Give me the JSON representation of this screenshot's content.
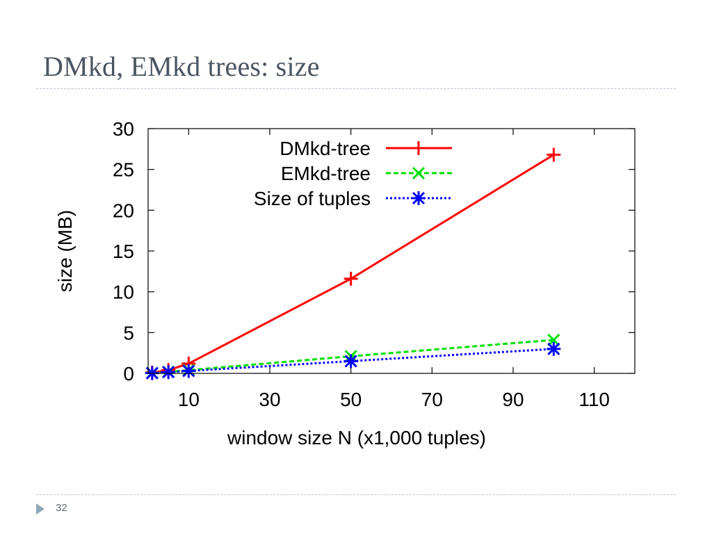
{
  "slide": {
    "title": "DMkd, EMkd trees: size",
    "page_number": "32"
  },
  "colors": {
    "dmkd": "#ff0000",
    "emkd": "#00e000",
    "tuples": "#0000ff",
    "title": "#4a5560",
    "rule": "#b6c2cc"
  },
  "chart_data": {
    "type": "line",
    "title": "",
    "xlabel": "window size N (x1,000 tuples)",
    "ylabel": "size (MB)",
    "xlim": [
      0,
      120
    ],
    "ylim": [
      0,
      30
    ],
    "x_ticks": [
      10,
      30,
      50,
      70,
      90,
      110
    ],
    "y_ticks": [
      0,
      5,
      10,
      15,
      20,
      25,
      30
    ],
    "legend_position": "top-left",
    "grid": false,
    "series": [
      {
        "name": "DMkd-tree",
        "color": "#ff0000",
        "marker": "plus",
        "line_style": "solid",
        "x": [
          1,
          5,
          10,
          50,
          100
        ],
        "y": [
          0.1,
          0.4,
          1.2,
          11.6,
          26.8
        ]
      },
      {
        "name": "EMkd-tree",
        "color": "#00e000",
        "marker": "cross",
        "line_style": "dashed",
        "x": [
          1,
          5,
          10,
          50,
          100
        ],
        "y": [
          0.05,
          0.2,
          0.4,
          2.1,
          4.1
        ]
      },
      {
        "name": "Size of tuples",
        "color": "#0000ff",
        "marker": "star",
        "line_style": "dotted",
        "x": [
          1,
          5,
          10,
          50,
          100
        ],
        "y": [
          0.03,
          0.15,
          0.3,
          1.5,
          3.0
        ]
      }
    ]
  }
}
